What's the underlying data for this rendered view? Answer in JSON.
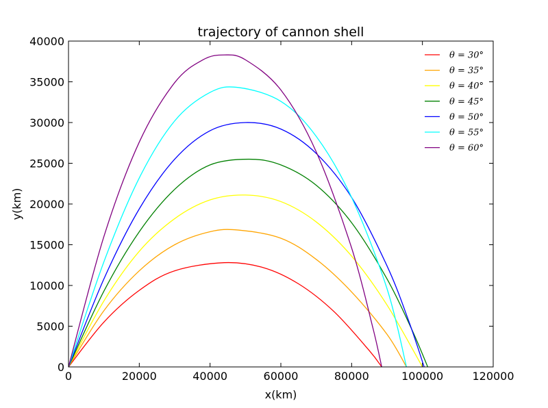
{
  "chart_data": {
    "type": "line",
    "title": "trajectory of cannon shell",
    "xlabel": "x(km)",
    "ylabel": "y(km)",
    "xlim": [
      0,
      120000
    ],
    "ylim": [
      0,
      40000
    ],
    "xticks": [
      0,
      20000,
      40000,
      60000,
      80000,
      100000,
      120000
    ],
    "yticks": [
      0,
      5000,
      10000,
      15000,
      20000,
      25000,
      30000,
      35000,
      40000
    ],
    "xtick_labels": [
      "0",
      "20000",
      "40000",
      "60000",
      "80000",
      "100000",
      "120000"
    ],
    "ytick_labels": [
      "0",
      "5000",
      "10000",
      "15000",
      "20000",
      "25000",
      "30000",
      "35000",
      "40000"
    ],
    "grid": false,
    "legend_position": "upper-right",
    "series": [
      {
        "name": "θ = 30°",
        "color": "#ff0000",
        "points": [
          [
            0,
            0
          ],
          [
            10000,
            5500
          ],
          [
            20000,
            9400
          ],
          [
            30000,
            11800
          ],
          [
            44000,
            12800
          ],
          [
            55000,
            12200
          ],
          [
            65000,
            10200
          ],
          [
            75000,
            6800
          ],
          [
            85000,
            2000
          ],
          [
            88500,
            0
          ]
        ]
      },
      {
        "name": "θ = 35°",
        "color": "#ffa500",
        "points": [
          [
            0,
            0
          ],
          [
            10000,
            6900
          ],
          [
            20000,
            11800
          ],
          [
            30000,
            15000
          ],
          [
            40000,
            16600
          ],
          [
            48000,
            16800
          ],
          [
            60000,
            15800
          ],
          [
            70000,
            13200
          ],
          [
            80000,
            9200
          ],
          [
            90000,
            4000
          ],
          [
            95500,
            0
          ]
        ]
      },
      {
        "name": "θ = 40°",
        "color": "#ffff00",
        "points": [
          [
            0,
            0
          ],
          [
            10000,
            8100
          ],
          [
            20000,
            14200
          ],
          [
            30000,
            18200
          ],
          [
            40000,
            20500
          ],
          [
            50000,
            21100
          ],
          [
            60000,
            20300
          ],
          [
            70000,
            17800
          ],
          [
            80000,
            13600
          ],
          [
            90000,
            7600
          ],
          [
            100000,
            0
          ]
        ]
      },
      {
        "name": "θ = 45°",
        "color": "#008000",
        "points": [
          [
            0,
            0
          ],
          [
            10000,
            9300
          ],
          [
            20000,
            16600
          ],
          [
            30000,
            21800
          ],
          [
            40000,
            24800
          ],
          [
            51000,
            25500
          ],
          [
            60000,
            24800
          ],
          [
            70000,
            22300
          ],
          [
            80000,
            17700
          ],
          [
            90000,
            10800
          ],
          [
            97000,
            4600
          ],
          [
            101500,
            0
          ]
        ]
      },
      {
        "name": "θ = 50°",
        "color": "#0000ff",
        "points": [
          [
            0,
            0
          ],
          [
            10000,
            10800
          ],
          [
            20000,
            19400
          ],
          [
            30000,
            25500
          ],
          [
            40000,
            29000
          ],
          [
            50000,
            30000
          ],
          [
            60000,
            29200
          ],
          [
            70000,
            26200
          ],
          [
            80000,
            20800
          ],
          [
            90000,
            12400
          ],
          [
            96000,
            5800
          ],
          [
            100500,
            0
          ]
        ]
      },
      {
        "name": "θ = 55°",
        "color": "#00ffff",
        "points": [
          [
            0,
            0
          ],
          [
            10000,
            12900
          ],
          [
            20000,
            23200
          ],
          [
            30000,
            30200
          ],
          [
            40000,
            33700
          ],
          [
            48000,
            34300
          ],
          [
            60000,
            32600
          ],
          [
            70000,
            28300
          ],
          [
            80000,
            20800
          ],
          [
            90000,
            9600
          ],
          [
            95500,
            0
          ]
        ]
      },
      {
        "name": "θ = 60°",
        "color": "#800080",
        "points": [
          [
            0,
            0
          ],
          [
            10000,
            16000
          ],
          [
            20000,
            27600
          ],
          [
            30000,
            34900
          ],
          [
            38000,
            37700
          ],
          [
            44000,
            38300
          ],
          [
            50000,
            37700
          ],
          [
            60000,
            34000
          ],
          [
            70000,
            26400
          ],
          [
            80000,
            14600
          ],
          [
            86000,
            4800
          ],
          [
            88500,
            0
          ]
        ]
      }
    ]
  }
}
